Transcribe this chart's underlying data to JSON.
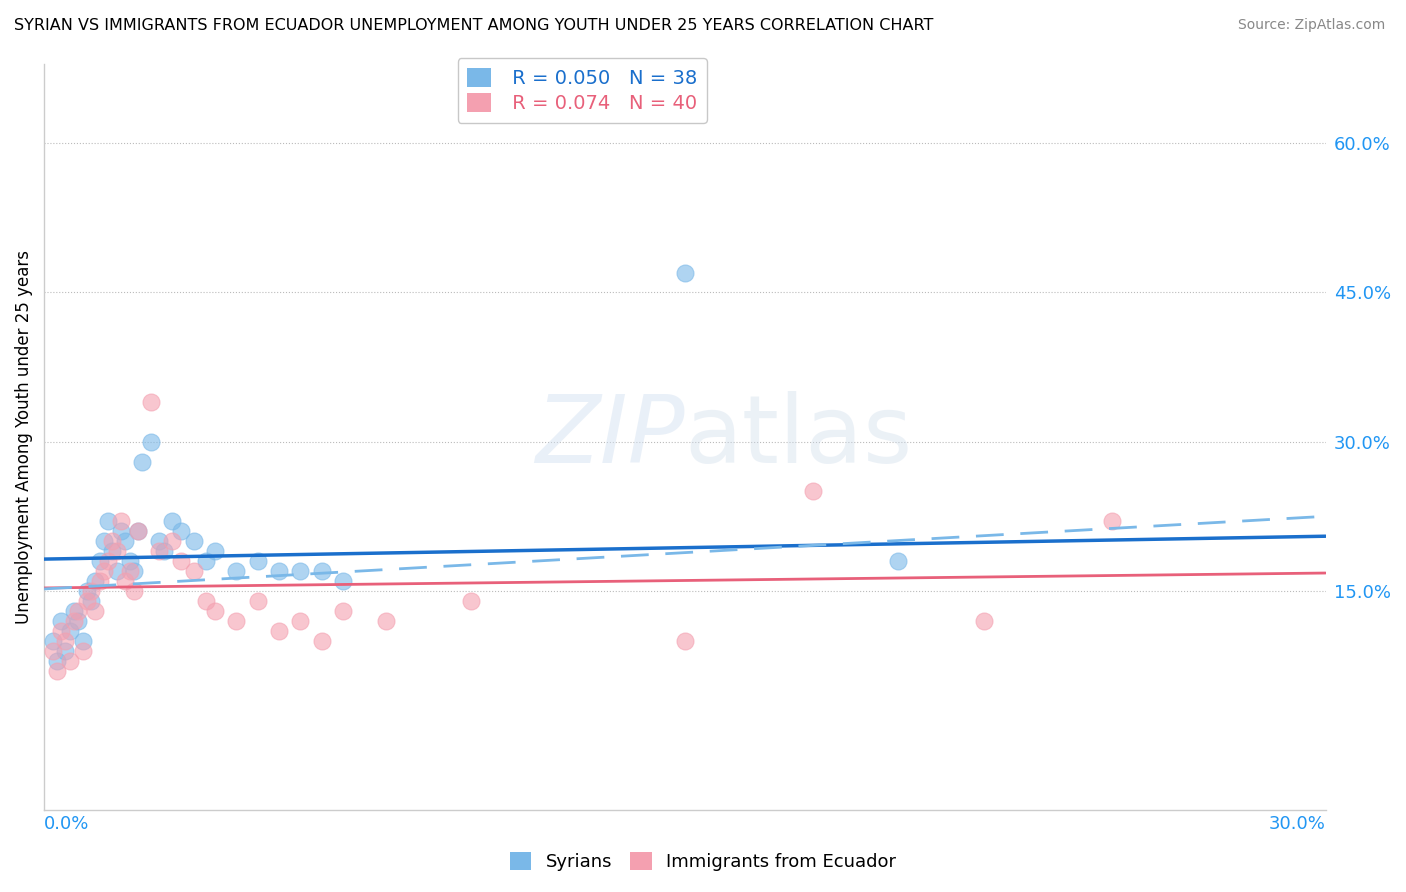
{
  "title": "SYRIAN VS IMMIGRANTS FROM ECUADOR UNEMPLOYMENT AMONG YOUTH UNDER 25 YEARS CORRELATION CHART",
  "source": "Source: ZipAtlas.com",
  "ylabel": "Unemployment Among Youth under 25 years",
  "ylabel_right_labels": [
    "60.0%",
    "45.0%",
    "30.0%",
    "15.0%"
  ],
  "ylabel_right_values": [
    0.6,
    0.45,
    0.3,
    0.15
  ],
  "xlim": [
    0.0,
    0.3
  ],
  "ylim": [
    -0.07,
    0.68
  ],
  "legend_syrian": {
    "R": 0.05,
    "N": 38
  },
  "legend_ecuador": {
    "R": 0.074,
    "N": 40
  },
  "syrian_color": "#7ab8e8",
  "ecuador_color": "#f4a0b0",
  "trend_syrian_color": "#1a6fcc",
  "trend_ecuador_solid_color": "#e8607a",
  "trend_ecuador_dashed_color": "#7ab8e8",
  "watermark_text": "ZIPatlas",
  "syrians_x": [
    0.002,
    0.003,
    0.004,
    0.005,
    0.006,
    0.007,
    0.008,
    0.009,
    0.01,
    0.011,
    0.012,
    0.013,
    0.014,
    0.015,
    0.016,
    0.017,
    0.018,
    0.019,
    0.02,
    0.021,
    0.022,
    0.023,
    0.025,
    0.027,
    0.028,
    0.03,
    0.032,
    0.035,
    0.038,
    0.04,
    0.045,
    0.05,
    0.055,
    0.06,
    0.065,
    0.07,
    0.15,
    0.2
  ],
  "syrians_y": [
    0.1,
    0.08,
    0.12,
    0.09,
    0.11,
    0.13,
    0.12,
    0.1,
    0.15,
    0.14,
    0.16,
    0.18,
    0.2,
    0.22,
    0.19,
    0.17,
    0.21,
    0.2,
    0.18,
    0.17,
    0.21,
    0.28,
    0.3,
    0.2,
    0.19,
    0.22,
    0.21,
    0.2,
    0.18,
    0.19,
    0.17,
    0.18,
    0.17,
    0.17,
    0.17,
    0.16,
    0.47,
    0.18
  ],
  "ecuador_x": [
    0.002,
    0.003,
    0.004,
    0.005,
    0.006,
    0.007,
    0.008,
    0.009,
    0.01,
    0.011,
    0.012,
    0.013,
    0.014,
    0.015,
    0.016,
    0.017,
    0.018,
    0.019,
    0.02,
    0.021,
    0.022,
    0.025,
    0.027,
    0.03,
    0.032,
    0.035,
    0.038,
    0.04,
    0.045,
    0.05,
    0.055,
    0.06,
    0.065,
    0.07,
    0.08,
    0.1,
    0.15,
    0.18,
    0.22,
    0.25
  ],
  "ecuador_y": [
    0.09,
    0.07,
    0.11,
    0.1,
    0.08,
    0.12,
    0.13,
    0.09,
    0.14,
    0.15,
    0.13,
    0.16,
    0.17,
    0.18,
    0.2,
    0.19,
    0.22,
    0.16,
    0.17,
    0.15,
    0.21,
    0.34,
    0.19,
    0.2,
    0.18,
    0.17,
    0.14,
    0.13,
    0.12,
    0.14,
    0.11,
    0.12,
    0.1,
    0.13,
    0.12,
    0.14,
    0.1,
    0.25,
    0.12,
    0.22
  ]
}
